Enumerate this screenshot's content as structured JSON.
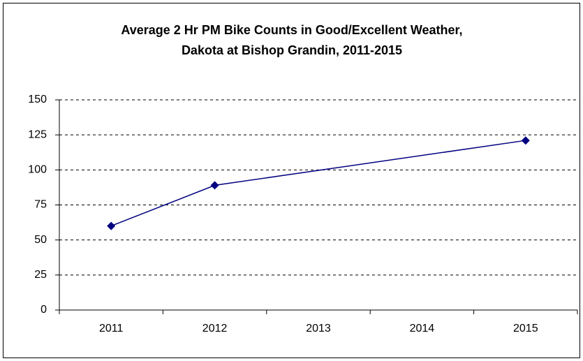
{
  "chart_data": {
    "type": "line",
    "title": [
      "Average 2 Hr PM Bike Counts in Good/Excellent Weather,",
      "Dakota at Bishop Grandin, 2011-2015"
    ],
    "categories": [
      "2011",
      "2012",
      "2013",
      "2014",
      "2015"
    ],
    "values": [
      60,
      89,
      null,
      null,
      121
    ],
    "color": "#000080",
    "span_gaps": true,
    "ylim": [
      0,
      150
    ],
    "yticks": [
      0,
      25,
      50,
      75,
      100,
      125,
      150
    ],
    "grid": true
  }
}
